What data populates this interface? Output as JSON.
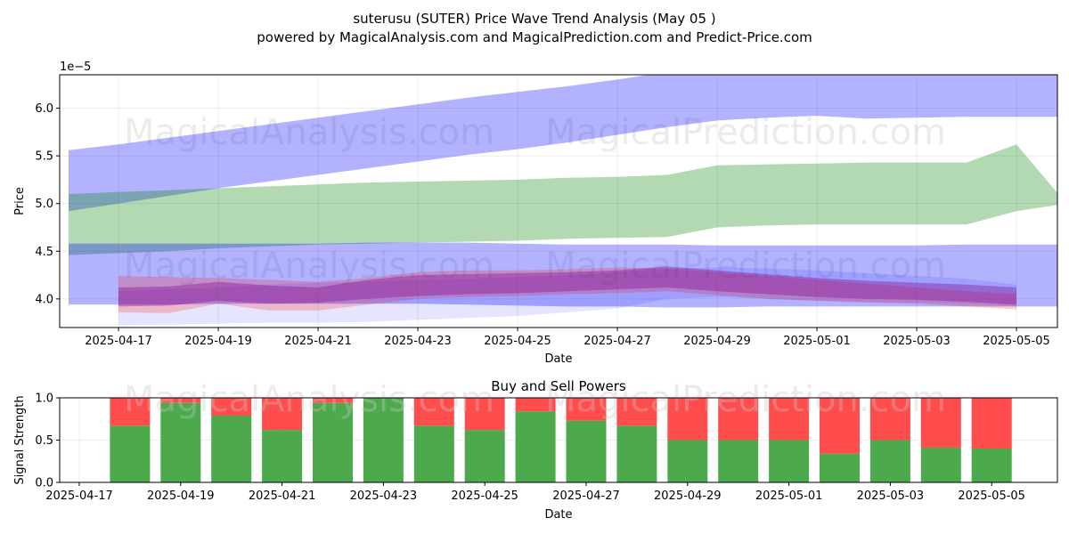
{
  "header": {
    "title": "suterusu (SUTER) Price Wave Trend Analysis (May 05 )",
    "subtitle": "powered by MagicalAnalysis.com and MagicalPrediction.com and Predict-Price.com"
  },
  "watermarks": [
    "MagicalAnalysis.com",
    "MagicalPrediction.com"
  ],
  "colors": {
    "blue_band": "#0000ff",
    "green_band": "#008000",
    "red_band": "#ff0000",
    "purple_band": "#800080",
    "buy_bar": "#4caa4c",
    "sell_bar": "#ff4c4c",
    "grid": "#b0b0b0"
  },
  "chart_data": [
    {
      "type": "area",
      "title": "",
      "xlabel": "Date",
      "ylabel": "Price",
      "y_offset_label": "1e−5",
      "ylim": [
        3.7,
        6.35
      ],
      "xlim": [
        "2025-04-16",
        "2025-05-06"
      ],
      "grid": true,
      "x_ticks": [
        "2025-04-17",
        "2025-04-19",
        "2025-04-21",
        "2025-04-23",
        "2025-04-25",
        "2025-04-27",
        "2025-04-29",
        "2025-05-01",
        "2025-05-03",
        "2025-05-05"
      ],
      "y_ticks": [
        "4.0",
        "4.5",
        "5.0",
        "5.5",
        "6.0"
      ],
      "series": [
        {
          "color": "blue_band",
          "alpha": 0.3,
          "x": [
            "2025-04-16",
            "2025-04-17",
            "2025-04-18",
            "2025-04-19",
            "2025-04-20",
            "2025-04-21",
            "2025-04-22",
            "2025-04-23",
            "2025-04-24",
            "2025-04-25",
            "2025-04-26",
            "2025-04-27",
            "2025-04-28",
            "2025-04-29",
            "2025-04-30",
            "2025-05-01",
            "2025-05-02",
            "2025-05-03",
            "2025-05-04",
            "2025-05-05",
            "2025-05-06"
          ],
          "upper": [
            5.56,
            5.62,
            5.69,
            5.76,
            5.83,
            5.9,
            5.97,
            6.04,
            6.11,
            6.17,
            6.23,
            6.3,
            6.38,
            6.42,
            6.44,
            6.45,
            6.44,
            6.45,
            6.46,
            6.46,
            6.46
          ],
          "lower": [
            4.92,
            5.0,
            5.08,
            5.16,
            5.23,
            5.3,
            5.37,
            5.44,
            5.51,
            5.57,
            5.64,
            5.72,
            5.8,
            5.87,
            5.9,
            5.92,
            5.89,
            5.9,
            5.91,
            5.91,
            5.91
          ]
        },
        {
          "color": "green_band",
          "alpha": 0.3,
          "x": [
            "2025-04-16",
            "2025-04-17",
            "2025-04-18",
            "2025-04-19",
            "2025-04-20",
            "2025-04-21",
            "2025-04-22",
            "2025-04-23",
            "2025-04-24",
            "2025-04-25",
            "2025-04-26",
            "2025-04-27",
            "2025-04-28",
            "2025-04-29",
            "2025-04-30",
            "2025-05-01",
            "2025-05-02",
            "2025-05-03",
            "2025-05-04",
            "2025-05-05",
            "2025-05-06"
          ],
          "upper": [
            5.1,
            5.12,
            5.14,
            5.16,
            5.18,
            5.2,
            5.22,
            5.23,
            5.24,
            5.25,
            5.27,
            5.28,
            5.3,
            5.4,
            5.41,
            5.42,
            5.43,
            5.43,
            5.43,
            5.62,
            5.0
          ],
          "lower": [
            4.46,
            4.48,
            4.5,
            4.53,
            4.55,
            4.57,
            4.58,
            4.59,
            4.6,
            4.61,
            4.63,
            4.64,
            4.65,
            4.75,
            4.77,
            4.78,
            4.78,
            4.78,
            4.78,
            4.92,
            5.0
          ]
        },
        {
          "color": "blue_band",
          "alpha": 0.3,
          "x": [
            "2025-04-16",
            "2025-04-17",
            "2025-04-18",
            "2025-04-19",
            "2025-04-20",
            "2025-04-21",
            "2025-04-22",
            "2025-04-23",
            "2025-04-24",
            "2025-04-25",
            "2025-04-26",
            "2025-04-27",
            "2025-04-28",
            "2025-04-29",
            "2025-04-30",
            "2025-05-01",
            "2025-05-02",
            "2025-05-03",
            "2025-05-04",
            "2025-05-05",
            "2025-05-06"
          ],
          "upper": [
            4.58,
            4.58,
            4.58,
            4.58,
            4.58,
            4.58,
            4.59,
            4.59,
            4.59,
            4.58,
            4.57,
            4.57,
            4.57,
            4.56,
            4.56,
            4.56,
            4.56,
            4.56,
            4.57,
            4.57,
            4.57
          ],
          "lower": [
            3.94,
            3.94,
            3.94,
            3.95,
            3.95,
            3.95,
            3.95,
            3.95,
            3.94,
            3.93,
            3.92,
            3.92,
            3.91,
            3.91,
            3.92,
            3.92,
            3.92,
            3.92,
            3.92,
            3.92,
            3.92
          ]
        },
        {
          "color": "blue_band",
          "alpha": 0.1,
          "x": [
            "2025-04-17",
            "2025-04-18",
            "2025-04-19",
            "2025-04-20",
            "2025-04-21",
            "2025-04-22",
            "2025-04-23",
            "2025-04-24",
            "2025-04-25",
            "2025-04-26",
            "2025-04-27",
            "2025-04-28",
            "2025-04-29",
            "2025-04-30",
            "2025-05-01",
            "2025-05-02",
            "2025-05-03",
            "2025-05-04",
            "2025-05-05"
          ],
          "upper": [
            4.08,
            4.1,
            4.12,
            4.15,
            4.17,
            4.18,
            4.2,
            4.21,
            4.23,
            4.25,
            4.28,
            4.32,
            4.33,
            4.32,
            4.3,
            4.27,
            4.24,
            4.21,
            4.15
          ],
          "lower": [
            3.72,
            3.73,
            3.74,
            3.75,
            3.75,
            3.76,
            3.78,
            3.8,
            3.82,
            3.86,
            3.9,
            4.0,
            4.02,
            4.0,
            3.98,
            3.97,
            3.96,
            3.95,
            3.92
          ]
        },
        {
          "color": "red_band",
          "alpha": 0.2,
          "x": [
            "2025-04-17",
            "2025-04-18",
            "2025-04-19",
            "2025-04-20",
            "2025-04-21",
            "2025-04-22",
            "2025-04-23",
            "2025-04-24",
            "2025-04-25",
            "2025-04-26",
            "2025-04-27",
            "2025-04-28",
            "2025-04-29",
            "2025-04-30",
            "2025-05-01",
            "2025-05-02",
            "2025-05-03",
            "2025-05-04",
            "2025-05-05"
          ],
          "upper": [
            4.24,
            4.23,
            4.22,
            4.2,
            4.18,
            4.22,
            4.28,
            4.3,
            4.3,
            4.31,
            4.33,
            4.32,
            4.28,
            4.24,
            4.2,
            4.16,
            4.12,
            4.08,
            4.05
          ],
          "lower": [
            3.86,
            3.85,
            3.95,
            3.88,
            3.88,
            3.94,
            4.0,
            4.02,
            4.03,
            4.05,
            4.06,
            4.08,
            4.04,
            4.0,
            3.98,
            3.96,
            3.95,
            3.92,
            3.89
          ]
        },
        {
          "color": "purple_band",
          "alpha": 0.35,
          "x": [
            "2025-04-17",
            "2025-04-18",
            "2025-04-19",
            "2025-04-20",
            "2025-04-21",
            "2025-04-22",
            "2025-04-23",
            "2025-04-24",
            "2025-04-25",
            "2025-04-26",
            "2025-04-27",
            "2025-04-28",
            "2025-04-29",
            "2025-04-30",
            "2025-05-01",
            "2025-05-02",
            "2025-05-03",
            "2025-05-04",
            "2025-05-05"
          ],
          "upper": [
            4.12,
            4.13,
            4.18,
            4.14,
            4.12,
            4.2,
            4.25,
            4.26,
            4.27,
            4.28,
            4.3,
            4.34,
            4.3,
            4.26,
            4.22,
            4.19,
            4.17,
            4.15,
            4.12
          ],
          "lower": [
            3.92,
            3.93,
            3.98,
            3.95,
            3.96,
            4.0,
            4.03,
            4.05,
            4.06,
            4.08,
            4.1,
            4.12,
            4.08,
            4.05,
            4.02,
            4.0,
            3.99,
            3.97,
            3.94
          ]
        }
      ]
    },
    {
      "type": "bar",
      "title": "Buy and Sell Powers",
      "xlabel": "Date",
      "ylabel": "Signal Strength",
      "ylim": [
        0,
        1.0
      ],
      "grid": true,
      "y_ticks": [
        "0.0",
        "0.5",
        "1.0"
      ],
      "x_ticks": [
        "2025-04-17",
        "2025-04-19",
        "2025-04-21",
        "2025-04-23",
        "2025-04-25",
        "2025-04-27",
        "2025-04-29",
        "2025-05-01",
        "2025-05-03",
        "2025-05-05"
      ],
      "categories": [
        "2025-04-18",
        "2025-04-19",
        "2025-04-20",
        "2025-04-21",
        "2025-04-22",
        "2025-04-23",
        "2025-04-24",
        "2025-04-25",
        "2025-04-26",
        "2025-04-27",
        "2025-04-28",
        "2025-04-29",
        "2025-04-30",
        "2025-05-01",
        "2025-05-02",
        "2025-05-03",
        "2025-05-04",
        "2025-05-05"
      ],
      "series": [
        {
          "color": "buy_bar",
          "values": [
            0.67,
            0.94,
            0.79,
            0.62,
            0.94,
            1.0,
            0.67,
            0.62,
            0.84,
            0.73,
            0.67,
            0.5,
            0.5,
            0.5,
            0.34,
            0.5,
            0.41,
            0.4
          ]
        },
        {
          "color": "sell_bar",
          "values": [
            0.33,
            0.06,
            0.21,
            0.38,
            0.06,
            0.0,
            0.33,
            0.38,
            0.16,
            0.27,
            0.33,
            0.5,
            0.5,
            0.5,
            0.66,
            0.5,
            0.59,
            0.6
          ]
        }
      ]
    }
  ]
}
